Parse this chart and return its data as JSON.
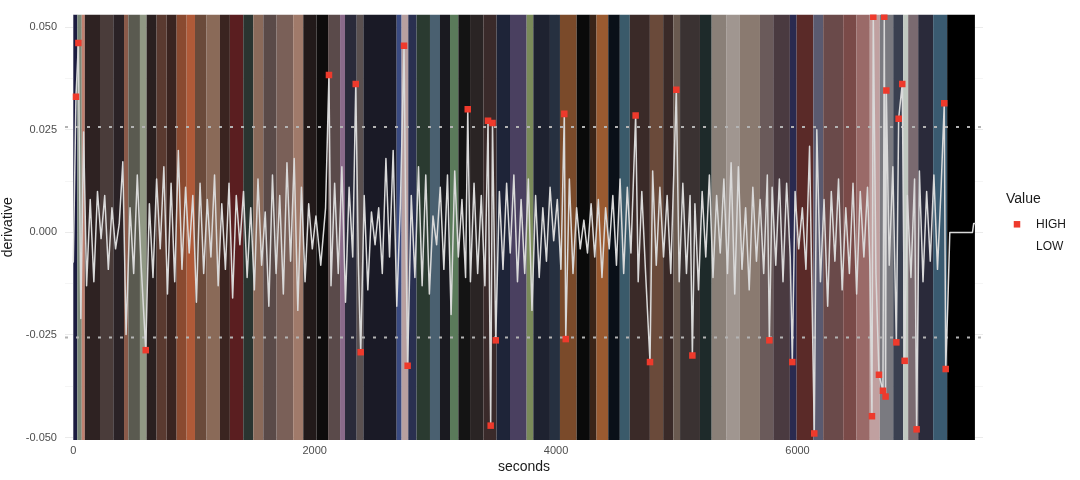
{
  "chart_data": {
    "type": "line",
    "xlabel": "seconds",
    "ylabel": "derivative",
    "legend_title": "Value",
    "legend": "right",
    "grid": true,
    "xlim": [
      -69,
      7537
    ],
    "ylim": [
      -0.0506,
      0.0531
    ],
    "xticks": [
      0,
      2000,
      4000,
      6000
    ],
    "yticks": [
      {
        "value": -0.05,
        "label": "-0.050"
      },
      {
        "value": -0.0375,
        "label": null
      },
      {
        "value": -0.025,
        "label": "-0.025"
      },
      {
        "value": -0.0125,
        "label": null
      },
      {
        "value": 0,
        "label": "0.000"
      },
      {
        "value": 0.0125,
        "label": null
      },
      {
        "value": 0.025,
        "label": "0.025"
      },
      {
        "value": 0.0375,
        "label": null
      },
      {
        "value": 0.05,
        "label": "0.050"
      }
    ],
    "ref_lines": [
      {
        "axis": "y",
        "value": 0.0257,
        "color": "#b3b3b3",
        "line_style": "dotted"
      },
      {
        "axis": "y",
        "value": -0.0256,
        "color": "#b3b3b3",
        "line_style": "dotted"
      }
    ],
    "bands": [
      {
        "axis": "x",
        "from": 0,
        "to": 33,
        "color": "#1c1c40"
      },
      {
        "axis": "x",
        "from": 33,
        "to": 70,
        "color": "#7a8878"
      },
      {
        "axis": "x",
        "from": 70,
        "to": 95,
        "color": "#c08070"
      },
      {
        "axis": "x",
        "from": 95,
        "to": 221,
        "color": "#2e2222"
      },
      {
        "axis": "x",
        "from": 221,
        "to": 331,
        "color": "#4a3c3a"
      },
      {
        "axis": "x",
        "from": 331,
        "to": 420,
        "color": "#2a2226"
      },
      {
        "axis": "x",
        "from": 420,
        "to": 456,
        "color": "#8a5a4a"
      },
      {
        "axis": "x",
        "from": 456,
        "to": 552,
        "color": "#5a5a50"
      },
      {
        "axis": "x",
        "from": 552,
        "to": 607,
        "color": "#909884"
      },
      {
        "axis": "x",
        "from": 607,
        "to": 690,
        "color": "#2a2020"
      },
      {
        "axis": "x",
        "from": 690,
        "to": 773,
        "color": "#5a3a30"
      },
      {
        "axis": "x",
        "from": 773,
        "to": 856,
        "color": "#3a2420"
      },
      {
        "axis": "x",
        "from": 856,
        "to": 939,
        "color": "#8a4a30"
      },
      {
        "axis": "x",
        "from": 939,
        "to": 1008,
        "color": "#b05a38"
      },
      {
        "axis": "x",
        "from": 1008,
        "to": 1104,
        "color": "#6a4a3a"
      },
      {
        "axis": "x",
        "from": 1104,
        "to": 1215,
        "color": "#8a6a58"
      },
      {
        "axis": "x",
        "from": 1215,
        "to": 1297,
        "color": "#3a2420"
      },
      {
        "axis": "x",
        "from": 1297,
        "to": 1408,
        "color": "#5a1e20"
      },
      {
        "axis": "x",
        "from": 1408,
        "to": 1491,
        "color": "#2a3430"
      },
      {
        "axis": "x",
        "from": 1491,
        "to": 1574,
        "color": "#8a6a5a"
      },
      {
        "axis": "x",
        "from": 1574,
        "to": 1684,
        "color": "#5a4a48"
      },
      {
        "axis": "x",
        "from": 1684,
        "to": 1822,
        "color": "#7a6058"
      },
      {
        "axis": "x",
        "from": 1822,
        "to": 1905,
        "color": "#a07a6a"
      },
      {
        "axis": "x",
        "from": 1905,
        "to": 2015,
        "color": "#221a1a"
      },
      {
        "axis": "x",
        "from": 2015,
        "to": 2111,
        "color": "#0e0c0c"
      },
      {
        "axis": "x",
        "from": 2111,
        "to": 2210,
        "color": "#5a4a4a"
      },
      {
        "axis": "x",
        "from": 2210,
        "to": 2251,
        "color": "#8a6a8a"
      },
      {
        "axis": "x",
        "from": 2251,
        "to": 2348,
        "color": "#2a2a3a"
      },
      {
        "axis": "x",
        "from": 2348,
        "to": 2403,
        "color": "#5a5050"
      },
      {
        "axis": "x",
        "from": 2403,
        "to": 2679,
        "color": "#1a1a26"
      },
      {
        "axis": "x",
        "from": 2679,
        "to": 2720,
        "color": "#3a4a80"
      },
      {
        "axis": "x",
        "from": 2720,
        "to": 2775,
        "color": "#b8a0a0"
      },
      {
        "axis": "x",
        "from": 2775,
        "to": 2844,
        "color": "#2a3050"
      },
      {
        "axis": "x",
        "from": 2844,
        "to": 2955,
        "color": "#2a3a30"
      },
      {
        "axis": "x",
        "from": 2955,
        "to": 3038,
        "color": "#4a6070"
      },
      {
        "axis": "x",
        "from": 3038,
        "to": 3121,
        "color": "#1a1a20"
      },
      {
        "axis": "x",
        "from": 3121,
        "to": 3190,
        "color": "#5a7a5a"
      },
      {
        "axis": "x",
        "from": 3190,
        "to": 3287,
        "color": "#141414"
      },
      {
        "axis": "x",
        "from": 3287,
        "to": 3397,
        "color": "#2a2424"
      },
      {
        "axis": "x",
        "from": 3397,
        "to": 3507,
        "color": "#3a2a2a"
      },
      {
        "axis": "x",
        "from": 3507,
        "to": 3618,
        "color": "#1e2438"
      },
      {
        "axis": "x",
        "from": 3618,
        "to": 3756,
        "color": "#4a4060"
      },
      {
        "axis": "x",
        "from": 3756,
        "to": 3811,
        "color": "#7a8a5a"
      },
      {
        "axis": "x",
        "from": 3811,
        "to": 3949,
        "color": "#1e2230"
      },
      {
        "axis": "x",
        "from": 3949,
        "to": 4032,
        "color": "#263040"
      },
      {
        "axis": "x",
        "from": 4032,
        "to": 4170,
        "color": "#7a4a2a"
      },
      {
        "axis": "x",
        "from": 4170,
        "to": 4280,
        "color": "#0a0a0a"
      },
      {
        "axis": "x",
        "from": 4280,
        "to": 4335,
        "color": "#3a2418"
      },
      {
        "axis": "x",
        "from": 4335,
        "to": 4432,
        "color": "#9a5a30"
      },
      {
        "axis": "x",
        "from": 4432,
        "to": 4528,
        "color": "#0a1018"
      },
      {
        "axis": "x",
        "from": 4528,
        "to": 4611,
        "color": "#3a5a6a"
      },
      {
        "axis": "x",
        "from": 4611,
        "to": 4777,
        "color": "#3a2a28"
      },
      {
        "axis": "x",
        "from": 4777,
        "to": 4887,
        "color": "#6a4a3a"
      },
      {
        "axis": "x",
        "from": 4887,
        "to": 4971,
        "color": "#3a2a28"
      },
      {
        "axis": "x",
        "from": 4971,
        "to": 5027,
        "color": "#6a5a50"
      },
      {
        "axis": "x",
        "from": 5027,
        "to": 5192,
        "color": "#3a3232"
      },
      {
        "axis": "x",
        "from": 5192,
        "to": 5289,
        "color": "#1e2a2a"
      },
      {
        "axis": "x",
        "from": 5289,
        "to": 5413,
        "color": "#8a8078"
      },
      {
        "axis": "x",
        "from": 5413,
        "to": 5523,
        "color": "#a09690"
      },
      {
        "axis": "x",
        "from": 5523,
        "to": 5689,
        "color": "#8a7a70"
      },
      {
        "axis": "x",
        "from": 5689,
        "to": 5799,
        "color": "#6a5a5a"
      },
      {
        "axis": "x",
        "from": 5799,
        "to": 5937,
        "color": "#4a3a40"
      },
      {
        "axis": "x",
        "from": 5937,
        "to": 5993,
        "color": "#2a2a50"
      },
      {
        "axis": "x",
        "from": 5993,
        "to": 6131,
        "color": "#5a2a28"
      },
      {
        "axis": "x",
        "from": 6131,
        "to": 6213,
        "color": "#5a5a70"
      },
      {
        "axis": "x",
        "from": 6213,
        "to": 6379,
        "color": "#6a4a4a"
      },
      {
        "axis": "x",
        "from": 6379,
        "to": 6489,
        "color": "#7a4a48"
      },
      {
        "axis": "x",
        "from": 6489,
        "to": 6599,
        "color": "#9a6a68"
      },
      {
        "axis": "x",
        "from": 6599,
        "to": 6682,
        "color": "#c0a0a0"
      },
      {
        "axis": "x",
        "from": 6682,
        "to": 6793,
        "color": "#7a7a80"
      },
      {
        "axis": "x",
        "from": 6793,
        "to": 6876,
        "color": "#3a4050"
      },
      {
        "axis": "x",
        "from": 6876,
        "to": 6917,
        "color": "#c0c8c0"
      },
      {
        "axis": "x",
        "from": 6917,
        "to": 7000,
        "color": "#7a6a70"
      },
      {
        "axis": "x",
        "from": 7000,
        "to": 7124,
        "color": "#2a2a3a"
      },
      {
        "axis": "x",
        "from": 7124,
        "to": 7240,
        "color": "#3a5a70"
      },
      {
        "axis": "x",
        "from": 7240,
        "to": 7470,
        "color": "#000000"
      }
    ],
    "series": [
      {
        "color": "#d9d9d9",
        "marker": "none",
        "line_style": "solid",
        "x": [
          0,
          22,
          42,
          62,
          85,
          110,
          140,
          170,
          200,
          230,
          260,
          290,
          320,
          350,
          380,
          410,
          437,
          470,
          500,
          530,
          560,
          600,
          630,
          660,
          690,
          720,
          750,
          780,
          810,
          840,
          870,
          900,
          930,
          960,
          990,
          1020,
          1050,
          1080,
          1110,
          1140,
          1170,
          1200,
          1230,
          1260,
          1290,
          1320,
          1350,
          1380,
          1410,
          1440,
          1470,
          1500,
          1530,
          1560,
          1590,
          1620,
          1650,
          1680,
          1710,
          1740,
          1770,
          1800,
          1830,
          1860,
          1890,
          1920,
          1950,
          1980,
          2010,
          2050,
          2090,
          2118,
          2135,
          2165,
          2195,
          2225,
          2255,
          2285,
          2315,
          2340,
          2362,
          2381,
          2410,
          2440,
          2470,
          2500,
          2530,
          2560,
          2590,
          2620,
          2650,
          2680,
          2710,
          2740,
          2755,
          2770,
          2800,
          2830,
          2860,
          2890,
          2920,
          2950,
          2980,
          3010,
          3040,
          3070,
          3100,
          3130,
          3160,
          3190,
          3220,
          3250,
          3268,
          3290,
          3320,
          3350,
          3380,
          3410,
          3436,
          3458,
          3473,
          3500,
          3530,
          3560,
          3590,
          3620,
          3650,
          3680,
          3710,
          3740,
          3770,
          3800,
          3830,
          3860,
          3890,
          3920,
          3950,
          3980,
          4010,
          4040,
          4068,
          4080,
          4110,
          4140,
          4170,
          4200,
          4230,
          4260,
          4290,
          4320,
          4350,
          4380,
          4410,
          4440,
          4470,
          4500,
          4530,
          4560,
          4590,
          4620,
          4659,
          4680,
          4710,
          4740,
          4778,
          4800,
          4830,
          4860,
          4890,
          4920,
          4950,
          4996,
          5020,
          5050,
          5080,
          5110,
          5129,
          5150,
          5180,
          5210,
          5240,
          5270,
          5300,
          5330,
          5360,
          5390,
          5420,
          5450,
          5480,
          5510,
          5540,
          5570,
          5600,
          5630,
          5660,
          5690,
          5720,
          5750,
          5767,
          5790,
          5820,
          5850,
          5880,
          5910,
          5940,
          5957,
          5980,
          6010,
          6040,
          6070,
          6100,
          6139,
          6160,
          6190,
          6220,
          6250,
          6280,
          6310,
          6340,
          6370,
          6400,
          6430,
          6460,
          6490,
          6520,
          6550,
          6580,
          6600,
          6617,
          6628,
          6650,
          6675,
          6708,
          6719,
          6730,
          6736,
          6760,
          6790,
          6819,
          6838,
          6868,
          6888,
          6910,
          6940,
          6970,
          6987,
          7010,
          7040,
          7070,
          7100,
          7130,
          7160,
          7190,
          7216,
          7228,
          7245,
          7262,
          7450,
          7460,
          7470
        ],
        "values": [
          -0.0072,
          0.0331,
          0.0462,
          -0.021,
          0.0245,
          -0.013,
          0.008,
          -0.012,
          0.01,
          -0.0015,
          0.009,
          -0.009,
          0.006,
          -0.004,
          0.002,
          0.0172,
          -0.0249,
          0.006,
          -0.01,
          0.014,
          -0.007,
          -0.0287,
          0.007,
          -0.011,
          0.013,
          -0.004,
          0.016,
          -0.015,
          0.012,
          -0.012,
          0.02,
          -0.009,
          0.011,
          -0.005,
          0.009,
          -0.017,
          0.012,
          -0.01,
          0.008,
          -0.006,
          0.014,
          -0.013,
          0.007,
          -0.009,
          0.012,
          -0.016,
          0.009,
          -0.003,
          0.01,
          -0.011,
          0.006,
          -0.014,
          0.013,
          -0.008,
          0.005,
          -0.018,
          0.014,
          -0.01,
          0.009,
          -0.015,
          0.017,
          -0.007,
          0.018,
          -0.019,
          0.011,
          -0.012,
          0.007,
          -0.004,
          0.004,
          -0.008,
          0.006,
          0.0384,
          -0.013,
          0.012,
          -0.01,
          0.016,
          -0.017,
          0.011,
          -0.006,
          0.0362,
          -0.008,
          -0.0292,
          0.009,
          -0.014,
          0.005,
          -0.003,
          0.006,
          -0.01,
          0.018,
          -0.006,
          0.02,
          -0.018,
          0.007,
          0.0455,
          0.0,
          -0.0325,
          0.009,
          -0.011,
          0.016,
          -0.013,
          0.014,
          -0.015,
          0.004,
          -0.003,
          0.011,
          -0.009,
          0.014,
          -0.02,
          0.015,
          -0.006,
          0.008,
          -0.011,
          0.03,
          -0.012,
          0.012,
          -0.01,
          0.009,
          -0.013,
          0.0272,
          -0.0471,
          0.0267,
          -0.0263,
          0.01,
          -0.009,
          0.012,
          -0.005,
          0.014,
          -0.012,
          0.008,
          -0.01,
          0.013,
          -0.019,
          0.009,
          -0.011,
          0.006,
          -0.007,
          0.011,
          -0.002,
          0.008,
          -0.009,
          0.0289,
          -0.026,
          0.013,
          -0.01,
          0.006,
          -0.004,
          0.003,
          -0.005,
          0.007,
          -0.006,
          0.008,
          -0.011,
          0.006,
          -0.004,
          0.009,
          -0.008,
          0.013,
          -0.01,
          0.011,
          -0.005,
          0.0285,
          -0.012,
          0.01,
          -0.009,
          -0.0316,
          0.015,
          -0.008,
          0.011,
          -0.006,
          0.009,
          -0.01,
          0.0348,
          -0.012,
          0.012,
          -0.01,
          0.009,
          -0.03,
          0.007,
          -0.014,
          0.01,
          -0.006,
          0.014,
          -0.011,
          0.009,
          -0.005,
          0.013,
          -0.01,
          0.017,
          -0.015,
          0.016,
          -0.009,
          0.006,
          -0.014,
          0.011,
          -0.007,
          0.008,
          -0.01,
          0.014,
          -0.0263,
          0.011,
          -0.008,
          0.013,
          -0.012,
          0.012,
          -0.006,
          -0.0316,
          0.01,
          -0.004,
          0.006,
          -0.009,
          0.021,
          -0.049,
          0.025,
          -0.012,
          0.008,
          -0.018,
          0.01,
          -0.007,
          0.013,
          -0.014,
          0.006,
          -0.01,
          0.012,
          -0.015,
          0.01,
          -0.006,
          0.011,
          -0.008,
          -0.0448,
          0.0526,
          -0.01,
          -0.0347,
          -0.0386,
          0.0526,
          -0.04,
          0.0346,
          -0.008,
          0.016,
          -0.0268,
          0.0277,
          0.0362,
          -0.0313,
          0.009,
          -0.011,
          0.013,
          -0.048,
          0.015,
          -0.012,
          0.01,
          -0.007,
          0.014,
          -0.009,
          0.011,
          0.0315,
          -0.0333,
          -0.018,
          0.0,
          0.0,
          0.0022,
          0.0022
        ]
      },
      {
        "type": "scatter",
        "name": "HIGH",
        "color": "#ee3a2c",
        "marker": "square",
        "x": [
          22,
          42,
          600,
          2118,
          2340,
          2381,
          2740,
          2770,
          3268,
          3436,
          3458,
          3473,
          3500,
          4068,
          4080,
          4659,
          4778,
          4996,
          5129,
          5767,
          5957,
          6139,
          6617,
          6628,
          6675,
          6708,
          6719,
          6730,
          6736,
          6819,
          6838,
          6868,
          6888,
          6987,
          7216,
          7228
        ],
        "values": [
          0.0331,
          0.0462,
          -0.0287,
          0.0384,
          0.0362,
          -0.0292,
          0.0455,
          -0.0325,
          0.03,
          0.0272,
          -0.0471,
          0.0267,
          -0.0263,
          0.0289,
          -0.026,
          0.0285,
          -0.0316,
          0.0348,
          -0.03,
          -0.0263,
          -0.0316,
          -0.049,
          -0.0448,
          0.0526,
          -0.0347,
          -0.0386,
          0.0526,
          -0.04,
          0.0346,
          -0.0268,
          0.0277,
          0.0362,
          -0.0313,
          -0.048,
          0.0315,
          -0.0333
        ]
      },
      {
        "type": "scatter",
        "name": "LOW"
      }
    ]
  }
}
